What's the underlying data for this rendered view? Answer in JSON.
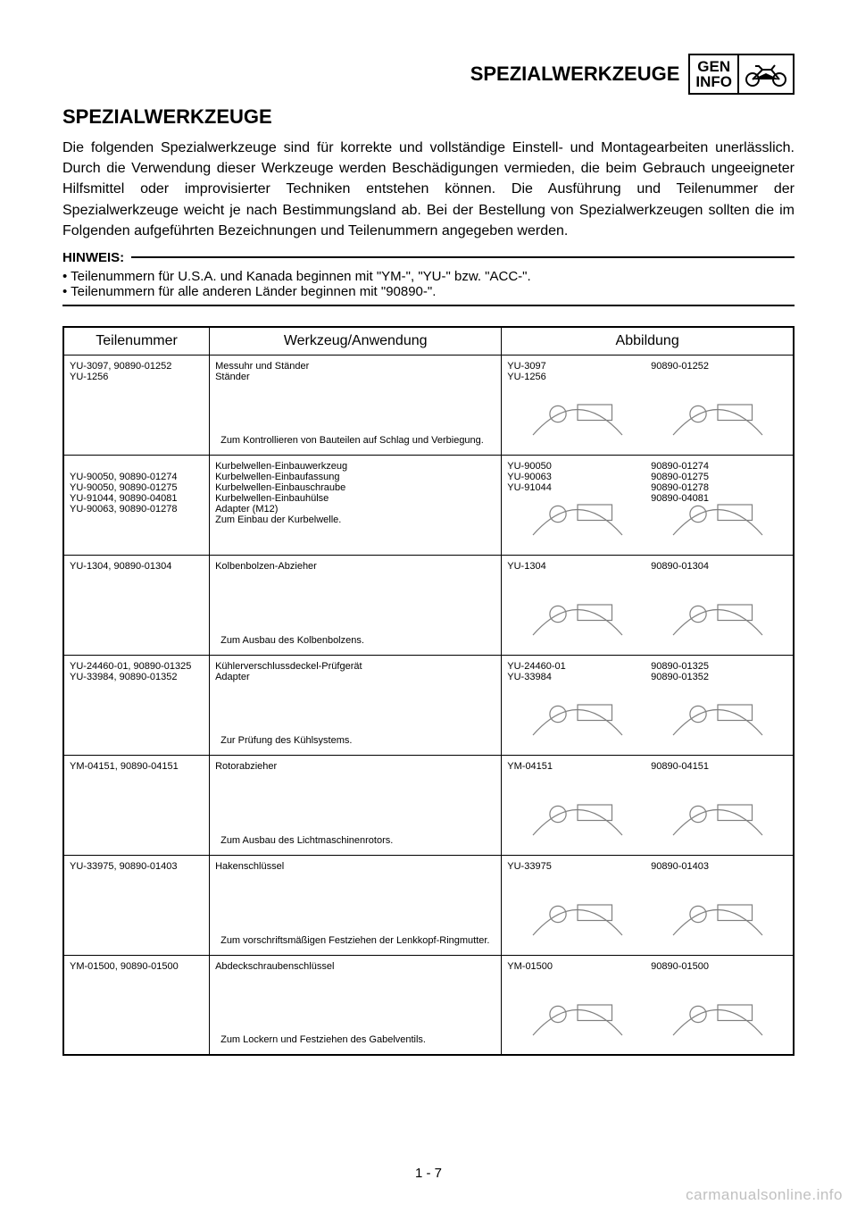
{
  "header": {
    "title": "SPEZIALWERKZEUGE",
    "box_top": "GEN",
    "box_bottom": "INFO"
  },
  "section_title": "SPEZIALWERKZEUGE",
  "intro": "Die folgenden Spezialwerkzeuge sind für korrekte und vollständige Einstell- und Montagearbeiten unerlässlich. Durch die Verwendung dieser Werkzeuge werden Beschädigungen vermieden, die beim Gebrauch ungeeigneter Hilfsmittel oder improvisierter Techniken entstehen können. Die Ausführung und Teilenummer der Spezialwerkzeuge weicht je nach Bestimmungsland ab. Bei der Bestellung von Spezialwerkzeugen sollten die im Folgenden aufgeführten Bezeichnungen und Teilenummern angegeben werden.",
  "hinweis": {
    "label": "HINWEIS:",
    "bullets": [
      "Teilenummern für U.S.A. und Kanada beginnen mit \"YM-\", \"YU-\" bzw. \"ACC-\".",
      "Teilenummern für alle anderen Länder beginnen mit \"90890-\"."
    ]
  },
  "table": {
    "headers": {
      "part": "Teilenummer",
      "tool": "Werkzeug/Anwendung",
      "ill": "Abbildung"
    },
    "rows": [
      {
        "part": "YU-3097, 90890-01252\nYU-1256",
        "tool_top": "Messuhr und Ständer\nStänder",
        "tool_bottom": "Zum Kontrollieren von Bauteilen auf Schlag und Verbiegung.",
        "ill_left_label": "YU-3097\nYU-1256",
        "ill_right_label": "90890-01252"
      },
      {
        "part": "\nYU-90050, 90890-01274\nYU-90050, 90890-01275\nYU-91044, 90890-04081\nYU-90063, 90890-01278",
        "tool_top": "Kurbelwellen-Einbauwerkzeug\nKurbelwellen-Einbaufassung\nKurbelwellen-Einbauschraube\nKurbelwellen-Einbauhülse\nAdapter (M12)\nZum Einbau der Kurbelwelle.",
        "tool_bottom": "",
        "ill_left_label": "YU-90050\nYU-90063\nYU-91044",
        "ill_right_label": "90890-01274\n90890-01275\n90890-01278\n90890-04081"
      },
      {
        "part": "YU-1304, 90890-01304",
        "tool_top": "Kolbenbolzen-Abzieher",
        "tool_bottom": "Zum Ausbau des Kolbenbolzens.",
        "ill_left_label": "YU-1304",
        "ill_right_label": "90890-01304"
      },
      {
        "part": "YU-24460-01, 90890-01325\nYU-33984, 90890-01352",
        "tool_top": "Kühlerverschlussdeckel-Prüfgerät\nAdapter",
        "tool_bottom": "Zur Prüfung des Kühlsystems.",
        "ill_left_label": "YU-24460-01\nYU-33984",
        "ill_right_label": "90890-01325\n90890-01352"
      },
      {
        "part": "YM-04151, 90890-04151",
        "tool_top": "Rotorabzieher",
        "tool_bottom": "Zum Ausbau des Lichtmaschinenrotors.",
        "ill_left_label": "YM-04151",
        "ill_right_label": "90890-04151"
      },
      {
        "part": "YU-33975, 90890-01403",
        "tool_top": "Hakenschlüssel",
        "tool_bottom": "Zum vorschriftsmäßigen Festziehen der Lenkkopf-Ringmutter.",
        "ill_left_label": "YU-33975",
        "ill_right_label": "90890-01403"
      },
      {
        "part": "YM-01500, 90890-01500",
        "tool_top": "Abdeckschraubenschlüssel",
        "tool_bottom": "Zum Lockern und Festziehen des Gabelventils.",
        "ill_left_label": "YM-01500",
        "ill_right_label": "90890-01500"
      }
    ]
  },
  "page_number": "1 - 7",
  "watermark": "carmanualsonline.info",
  "colors": {
    "text": "#000000",
    "background": "#ffffff",
    "watermark": "#c0c0c0",
    "svg_stroke": "#808080"
  }
}
